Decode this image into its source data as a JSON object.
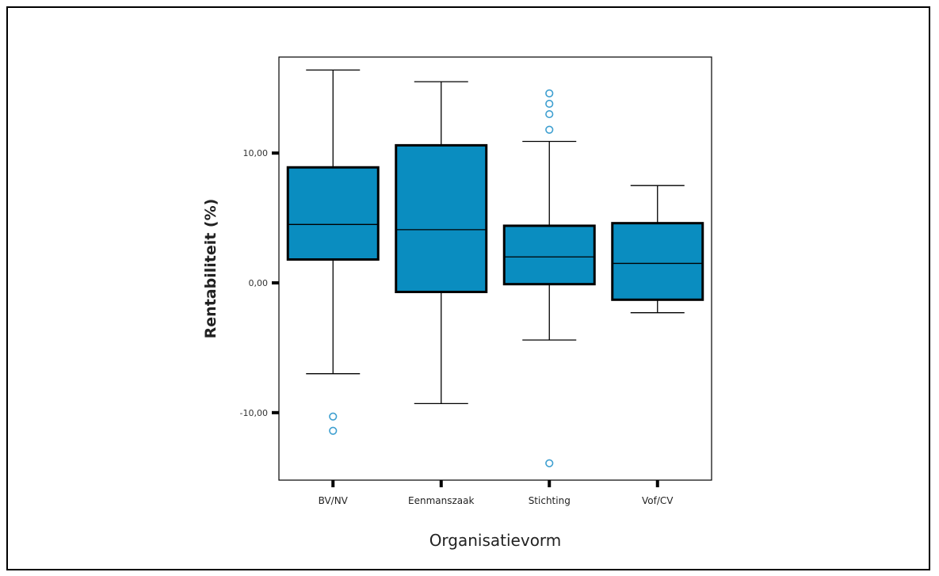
{
  "chart_data": {
    "type": "boxplot",
    "xlabel": "Organisatievorm",
    "ylabel": "Rentabiliteit (%)",
    "ylim": [
      -15.2,
      17.4
    ],
    "yticks": [
      {
        "value": 10,
        "label": "10,00"
      },
      {
        "value": 0,
        "label": "0,00"
      },
      {
        "value": -10,
        "label": "-10,00"
      }
    ],
    "grid": false,
    "box_color": "#0A8DC0",
    "outlier_color": "#3E9FD0",
    "categories": [
      "BV/NV",
      "Eenmanszaak",
      "Stichting",
      "Vof/CV"
    ],
    "boxes": [
      {
        "category": "BV/NV",
        "whisker_low": -7.0,
        "q1": 1.8,
        "median": 4.5,
        "q3": 8.9,
        "whisker_high": 16.4,
        "outliers": [
          -10.3,
          -11.4
        ]
      },
      {
        "category": "Eenmanszaak",
        "whisker_low": -9.3,
        "q1": -0.7,
        "median": 4.1,
        "q3": 10.6,
        "whisker_high": 15.5,
        "outliers": []
      },
      {
        "category": "Stichting",
        "whisker_low": -4.4,
        "q1": -0.1,
        "median": 2.0,
        "q3": 4.4,
        "whisker_high": 10.9,
        "outliers": [
          14.6,
          13.8,
          13.0,
          11.8,
          -13.9
        ]
      },
      {
        "category": "Vof/CV",
        "whisker_low": -2.3,
        "q1": -1.3,
        "median": 1.5,
        "q3": 4.6,
        "whisker_high": 7.5,
        "outliers": []
      }
    ]
  }
}
